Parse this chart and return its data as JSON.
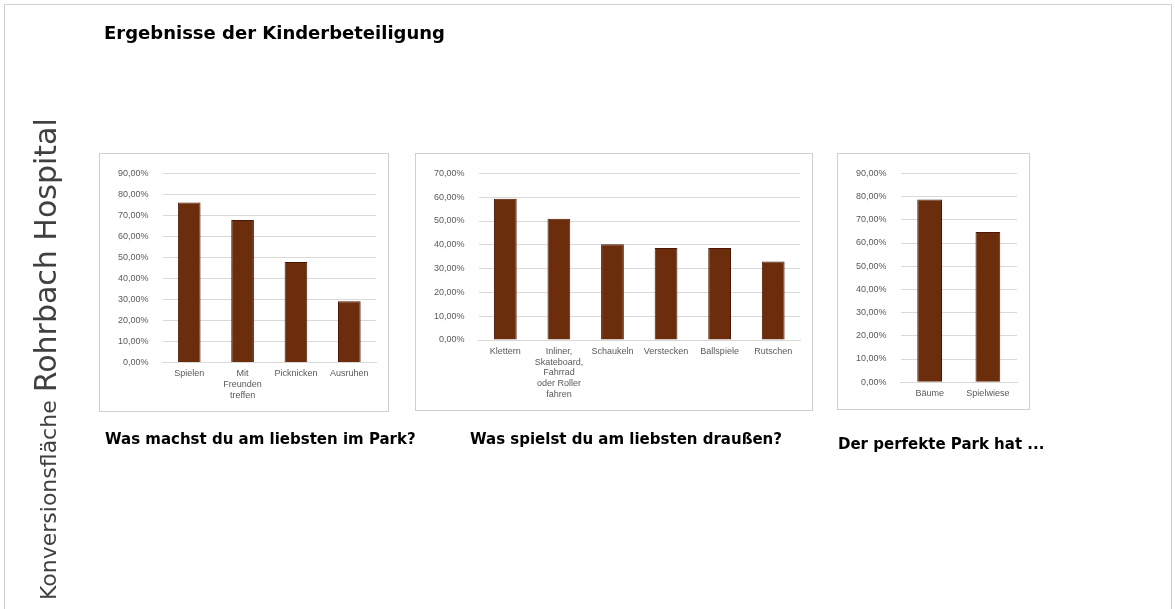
{
  "chart_data": [
    {
      "type": "other",
      "title": "Ergebnisse der Kinderbeteiligung",
      "annotations": [
        "Konversionsfläche",
        "Rohrbach Hospital"
      ]
    },
    {
      "type": "bar",
      "title": "Was machst du am liebsten im Park?",
      "categories": [
        "Spielen",
        "Mit Freunden treffen",
        "Picknicken",
        "Ausruhen"
      ],
      "values": [
        76.1,
        67.8,
        47.8,
        29.2
      ],
      "color": "#6b2d0b",
      "ylim": [
        0,
        90
      ],
      "yticks": [
        {
          "value": 0,
          "label": "0,00%"
        },
        {
          "value": 10,
          "label": "10,00%"
        },
        {
          "value": 20,
          "label": "20,00%"
        },
        {
          "value": 30,
          "label": "30,00%"
        },
        {
          "value": 40,
          "label": "40,00%"
        },
        {
          "value": 50,
          "label": "50,00%"
        },
        {
          "value": 60,
          "label": "60,00%"
        },
        {
          "value": 70,
          "label": "70,00%"
        },
        {
          "value": 80,
          "label": "80,00%"
        },
        {
          "value": 90,
          "label": "90,00%"
        }
      ],
      "grid": "y"
    },
    {
      "type": "bar",
      "title": "Was spielst du am liebsten draußen?",
      "categories": [
        "Klettern",
        "Inliner, Skateboard, Fahrrad oder Roller fahren",
        "Schaukeln",
        "Verstecken",
        "Ballspiele",
        "Rutschen"
      ],
      "values": [
        59.4,
        50.9,
        40.2,
        38.7,
        38.7,
        33.0
      ],
      "color": "#6b2d0b",
      "ylim": [
        0,
        70
      ],
      "yticks": [
        {
          "value": 0,
          "label": "0,00%"
        },
        {
          "value": 10,
          "label": "10,00%"
        },
        {
          "value": 20,
          "label": "20,00%"
        },
        {
          "value": 30,
          "label": "30,00%"
        },
        {
          "value": 40,
          "label": "40,00%"
        },
        {
          "value": 50,
          "label": "50,00%"
        },
        {
          "value": 60,
          "label": "60,00%"
        },
        {
          "value": 70,
          "label": "70,00%"
        }
      ],
      "grid": "y"
    },
    {
      "type": "bar",
      "title": "Der perfekte Park hat ...",
      "categories": [
        "Bäume",
        "Spielwiese"
      ],
      "values": [
        78.7,
        64.7
      ],
      "color": "#6b2d0b",
      "ylim": [
        0,
        90
      ],
      "yticks": [
        {
          "value": 0,
          "label": "0,00%"
        },
        {
          "value": 10,
          "label": "10,00%"
        },
        {
          "value": 20,
          "label": "20,00%"
        },
        {
          "value": 30,
          "label": "30,00%"
        },
        {
          "value": 40,
          "label": "40,00%"
        },
        {
          "value": 50,
          "label": "50,00%"
        },
        {
          "value": 60,
          "label": "60,00%"
        },
        {
          "value": 70,
          "label": "70,00%"
        },
        {
          "value": 80,
          "label": "80,00%"
        },
        {
          "value": 90,
          "label": "90,00%"
        }
      ],
      "grid": "y"
    }
  ]
}
